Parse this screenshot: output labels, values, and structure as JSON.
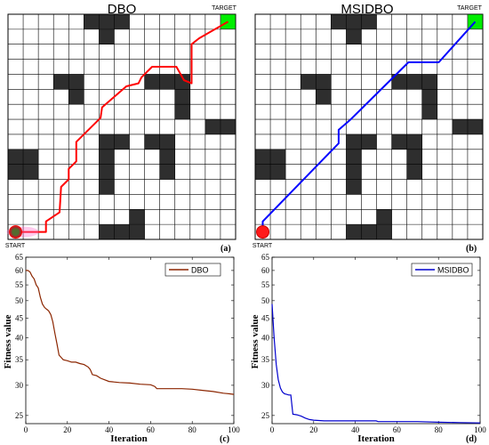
{
  "chart_data": [
    {
      "type": "path-grid",
      "title": "DBO",
      "start_label": "START",
      "target_label": "TARGET",
      "panel_label": "(a)",
      "grid": {
        "cols": 15,
        "rows": 15
      },
      "obstacles": [
        [
          5,
          0
        ],
        [
          6,
          0
        ],
        [
          7,
          0
        ],
        [
          6,
          1
        ],
        [
          3,
          4
        ],
        [
          4,
          4
        ],
        [
          9,
          4
        ],
        [
          10,
          4
        ],
        [
          11,
          4
        ],
        [
          4,
          5
        ],
        [
          11,
          5
        ],
        [
          11,
          6
        ],
        [
          13,
          7
        ],
        [
          14,
          7
        ],
        [
          6,
          8
        ],
        [
          7,
          8
        ],
        [
          6,
          9
        ],
        [
          9,
          8
        ],
        [
          10,
          8
        ],
        [
          0,
          9
        ],
        [
          1,
          9
        ],
        [
          10,
          9
        ],
        [
          0,
          10
        ],
        [
          1,
          10
        ],
        [
          6,
          10
        ],
        [
          10,
          10
        ],
        [
          6,
          11
        ],
        [
          8,
          13
        ],
        [
          6,
          14
        ],
        [
          7,
          14
        ],
        [
          8,
          14
        ]
      ],
      "path_color": "#ff0000",
      "path": [
        [
          0.5,
          14.5
        ],
        [
          2.5,
          14.5
        ],
        [
          2.5,
          13.8
        ],
        [
          3.4,
          13.2
        ],
        [
          3.5,
          11.5
        ],
        [
          4.0,
          11.0
        ],
        [
          4.0,
          10.3
        ],
        [
          4.5,
          9.8
        ],
        [
          4.5,
          8.5
        ],
        [
          6.1,
          6.9
        ],
        [
          6.2,
          6.2
        ],
        [
          7.8,
          4.8
        ],
        [
          8.6,
          4.6
        ],
        [
          8.8,
          4.2
        ],
        [
          9.5,
          3.5
        ],
        [
          11.1,
          3.5
        ],
        [
          11.6,
          4.4
        ],
        [
          12.1,
          4.6
        ],
        [
          12.1,
          2.0
        ],
        [
          12.6,
          1.6
        ],
        [
          14.5,
          0.5
        ]
      ]
    },
    {
      "type": "path-grid",
      "title": "MSIDBO",
      "start_label": "START",
      "target_label": "TARGET",
      "panel_label": "(b)",
      "grid": {
        "cols": 15,
        "rows": 15
      },
      "obstacles": [
        [
          5,
          0
        ],
        [
          6,
          0
        ],
        [
          7,
          0
        ],
        [
          6,
          1
        ],
        [
          3,
          4
        ],
        [
          4,
          4
        ],
        [
          9,
          4
        ],
        [
          10,
          4
        ],
        [
          11,
          4
        ],
        [
          4,
          5
        ],
        [
          11,
          5
        ],
        [
          11,
          6
        ],
        [
          13,
          7
        ],
        [
          14,
          7
        ],
        [
          6,
          8
        ],
        [
          7,
          8
        ],
        [
          6,
          9
        ],
        [
          9,
          8
        ],
        [
          10,
          8
        ],
        [
          0,
          9
        ],
        [
          1,
          9
        ],
        [
          10,
          9
        ],
        [
          0,
          10
        ],
        [
          1,
          10
        ],
        [
          6,
          10
        ],
        [
          10,
          10
        ],
        [
          6,
          11
        ],
        [
          8,
          13
        ],
        [
          6,
          14
        ],
        [
          7,
          14
        ],
        [
          8,
          14
        ]
      ],
      "path_color": "#0000ff",
      "path": [
        [
          0.5,
          14.5
        ],
        [
          0.5,
          13.8
        ],
        [
          5.5,
          8.6
        ],
        [
          5.5,
          7.7
        ],
        [
          6.3,
          7.0
        ],
        [
          10.1,
          3.2
        ],
        [
          12.1,
          3.2
        ],
        [
          14.5,
          0.5
        ]
      ]
    },
    {
      "type": "line",
      "title": "",
      "panel_label": "(c)",
      "xlabel": "Iteration",
      "ylabel": "Fitness value",
      "xlim": [
        0,
        100
      ],
      "ylim": [
        23.8,
        65
      ],
      "yscale": "log",
      "xticks": [
        "0",
        "20",
        "40",
        "60",
        "80",
        "100"
      ],
      "yticks": [
        "25",
        "30",
        "35",
        "40",
        "45",
        "50",
        "55",
        "60",
        "65"
      ],
      "legend_position": "top-right",
      "series": [
        {
          "name": "DBO",
          "color": "#8b2500",
          "x": [
            0,
            1,
            2,
            3,
            4,
            5,
            6,
            7,
            8,
            9,
            10,
            11,
            12,
            13,
            14,
            15,
            16,
            17,
            18,
            20,
            22,
            24,
            26,
            28,
            30,
            31,
            32,
            34,
            36,
            38,
            40,
            45,
            50,
            55,
            60,
            62,
            63,
            65,
            70,
            75,
            80,
            85,
            90,
            95,
            98,
            100
          ],
          "y": [
            60,
            60,
            59.5,
            58,
            57,
            55,
            54,
            51,
            49,
            48,
            47.5,
            47,
            46,
            44,
            41,
            38.5,
            36,
            35.5,
            35,
            34.8,
            34.5,
            34.5,
            34.2,
            34,
            33.5,
            33,
            32,
            31.8,
            31.3,
            31,
            30.7,
            30.5,
            30.4,
            30.2,
            30.1,
            29.8,
            29.4,
            29.4,
            29.4,
            29.4,
            29.3,
            29.1,
            28.9,
            28.6,
            28.5,
            28.4
          ]
        }
      ]
    },
    {
      "type": "line",
      "title": "",
      "panel_label": "(d)",
      "xlabel": "Iteration",
      "ylabel": "Fitness value",
      "xlim": [
        0,
        100
      ],
      "ylim": [
        23.8,
        65
      ],
      "yscale": "log",
      "xticks": [
        "0",
        "20",
        "40",
        "60",
        "80",
        "100"
      ],
      "yticks": [
        "25",
        "30",
        "35",
        "40",
        "45",
        "50",
        "55",
        "60",
        "65"
      ],
      "legend_position": "top-right",
      "series": [
        {
          "name": "MSIDBO",
          "color": "#0000cd",
          "x": [
            0,
            1,
            2,
            3,
            4,
            5,
            6,
            7,
            8,
            9,
            10,
            12,
            14,
            16,
            18,
            20,
            25,
            30,
            40,
            50,
            51,
            60,
            70,
            80,
            90,
            100
          ],
          "y": [
            49,
            40,
            34,
            31,
            29.5,
            28.8,
            28.5,
            28.4,
            28.3,
            28.3,
            25.2,
            25.1,
            24.9,
            24.6,
            24.4,
            24.3,
            24.2,
            24.2,
            24.2,
            24.2,
            24.1,
            24.1,
            24.1,
            24.0,
            23.95,
            23.9
          ]
        }
      ]
    }
  ]
}
